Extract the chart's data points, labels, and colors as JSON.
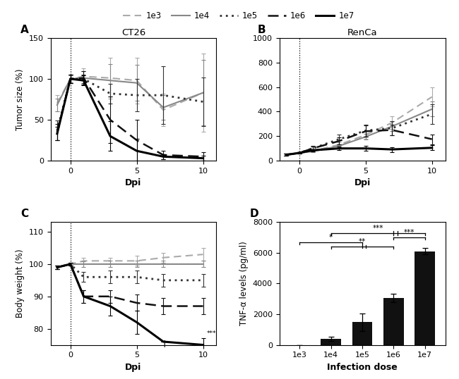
{
  "legend_labels": [
    "1e3",
    "1e4",
    "1e5",
    "1e6",
    "1e7"
  ],
  "panel_A_title": "CT26",
  "panel_A_xlabel": "Dpi",
  "panel_A_ylabel": "Tumor size (%)",
  "panel_A_ylim": [
    0,
    150
  ],
  "panel_A_yticks": [
    0,
    50,
    100,
    150
  ],
  "panel_A_xlim": [
    -1.5,
    11
  ],
  "panel_A_xticks": [
    0,
    5,
    10
  ],
  "A_x": [
    -1,
    0,
    1,
    3,
    5,
    7,
    10
  ],
  "A_1e3_y": [
    70,
    100,
    103,
    101,
    98,
    62,
    83
  ],
  "A_1e3_err": [
    10,
    5,
    10,
    25,
    28,
    20,
    48
  ],
  "A_1e4_y": [
    68,
    100,
    101,
    98,
    95,
    65,
    83
  ],
  "A_1e4_err": [
    8,
    4,
    8,
    20,
    22,
    15,
    40
  ],
  "A_1e5_y": [
    37,
    100,
    100,
    82,
    80,
    80,
    72
  ],
  "A_1e5_err": [
    12,
    5,
    5,
    12,
    20,
    35,
    30
  ],
  "A_1e6_y": [
    35,
    100,
    101,
    50,
    25,
    7,
    5
  ],
  "A_1e6_err": [
    10,
    5,
    8,
    28,
    25,
    5,
    5
  ],
  "A_1e7_y": [
    33,
    100,
    98,
    30,
    12,
    5,
    3
  ],
  "A_1e7_err": [
    8,
    5,
    6,
    18,
    15,
    3,
    3
  ],
  "panel_B_title": "RenCa",
  "panel_B_xlabel": "Dpi",
  "panel_B_ylim": [
    0,
    1000
  ],
  "panel_B_yticks": [
    0,
    200,
    400,
    600,
    800,
    1000
  ],
  "panel_B_xlim": [
    -1.5,
    11
  ],
  "panel_B_xticks": [
    0,
    5,
    10
  ],
  "B_x": [
    -1,
    0,
    1,
    3,
    5,
    7,
    10
  ],
  "B_1e3_y": [
    50,
    65,
    80,
    130,
    210,
    310,
    520
  ],
  "B_1e3_err": [
    10,
    8,
    10,
    20,
    30,
    50,
    80
  ],
  "B_1e4_y": [
    48,
    63,
    75,
    120,
    195,
    280,
    420
  ],
  "B_1e4_err": [
    8,
    6,
    8,
    15,
    25,
    40,
    60
  ],
  "B_1e5_y": [
    48,
    63,
    100,
    175,
    245,
    265,
    380
  ],
  "B_1e5_err": [
    8,
    6,
    20,
    40,
    50,
    55,
    80
  ],
  "B_1e6_y": [
    48,
    63,
    100,
    160,
    240,
    250,
    175
  ],
  "B_1e6_err": [
    8,
    6,
    15,
    30,
    45,
    45,
    40
  ],
  "B_1e7_y": [
    48,
    63,
    85,
    100,
    100,
    92,
    105
  ],
  "B_1e7_err": [
    8,
    5,
    10,
    15,
    20,
    20,
    20
  ],
  "panel_C_xlabel": "Dpi",
  "panel_C_ylabel": "Body weight (%)",
  "panel_C_ylim": [
    75,
    113
  ],
  "panel_C_yticks": [
    80,
    90,
    100,
    110
  ],
  "panel_C_xlim": [
    -1.5,
    11
  ],
  "panel_C_xticks": [
    0,
    5,
    10
  ],
  "C_x": [
    -1,
    0,
    1,
    3,
    5,
    7,
    10
  ],
  "C_1e3_y": [
    99,
    100,
    101,
    101,
    101,
    102,
    103
  ],
  "C_1e3_err": [
    0.5,
    0.5,
    1,
    1,
    1.5,
    1.5,
    2
  ],
  "C_1e4_y": [
    99,
    100,
    100,
    100,
    100,
    100,
    100
  ],
  "C_1e4_err": [
    0.5,
    0.5,
    0.8,
    1,
    1,
    1,
    1
  ],
  "C_1e5_y": [
    99,
    100,
    96,
    96,
    96,
    95,
    95
  ],
  "C_1e5_err": [
    0.5,
    0.5,
    1.5,
    2,
    2,
    2,
    2
  ],
  "C_1e6_y": [
    99,
    100,
    90,
    90,
    88,
    87,
    87
  ],
  "C_1e6_err": [
    0.5,
    0.5,
    2,
    2,
    2.5,
    2.5,
    2.5
  ],
  "C_1e7_y": [
    99,
    100,
    90,
    87,
    82,
    76,
    75
  ],
  "C_1e7_err": [
    0.5,
    0.5,
    2,
    3,
    3.5,
    0,
    2
  ],
  "D_categories": [
    "1e3",
    "1e4",
    "1e5",
    "1e6",
    "1e7"
  ],
  "D_values": [
    0,
    380,
    1480,
    3050,
    6100
  ],
  "D_errors": [
    0,
    130,
    580,
    280,
    200
  ],
  "D_bar_color": "#111111",
  "D_xlabel": "Infection dose",
  "D_ylabel": "TNF-α levels (pg/ml)",
  "D_ylim": [
    0,
    8000
  ],
  "D_yticks": [
    0,
    2000,
    4000,
    6000,
    8000
  ]
}
